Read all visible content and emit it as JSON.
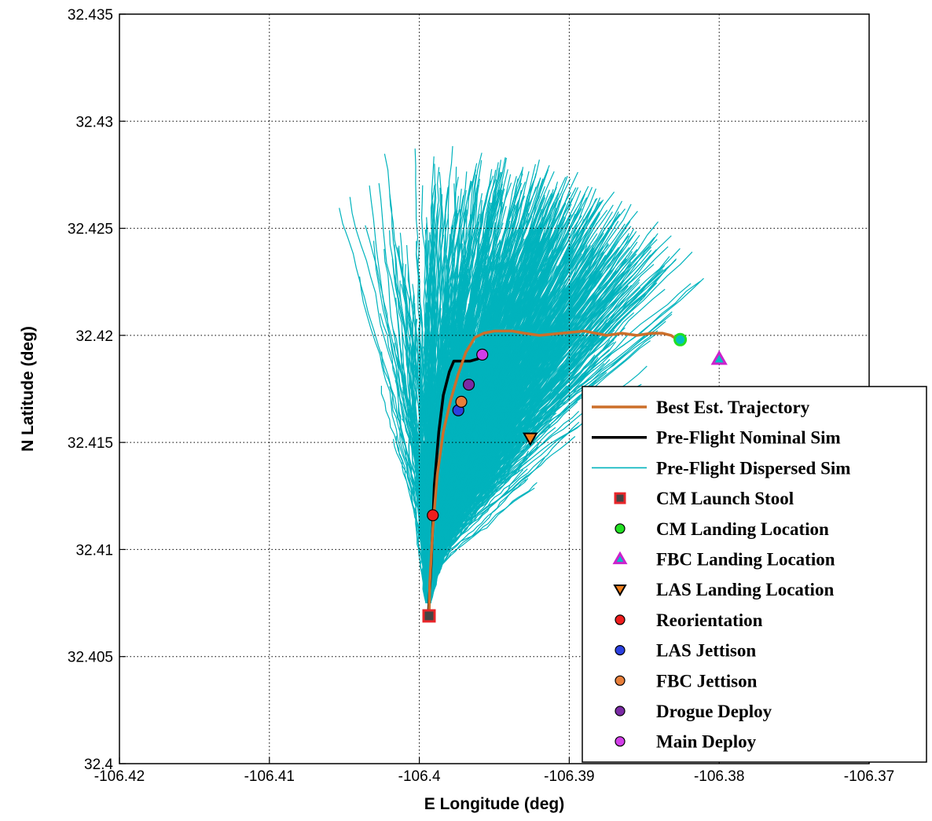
{
  "chart_data": {
    "type": "line",
    "title": "",
    "xlabel": "E Longitude (deg)",
    "ylabel": "N Latitude (deg)",
    "xlim": [
      -106.42,
      -106.37
    ],
    "ylim": [
      32.4,
      32.435
    ],
    "x_ticks": [
      -106.42,
      -106.41,
      -106.4,
      -106.39,
      -106.38,
      -106.37
    ],
    "y_ticks": [
      32.4,
      32.405,
      32.41,
      32.415,
      32.42,
      32.425,
      32.43,
      32.435
    ],
    "x_tick_labels": [
      "-106.42",
      "-106.41",
      "-106.4",
      "-106.39",
      "-106.38",
      "-106.37"
    ],
    "y_tick_labels": [
      "32.4",
      "32.405",
      "32.41",
      "32.415",
      "32.42",
      "32.425",
      "32.43",
      "32.435"
    ],
    "grid": true,
    "legend_position": "bottom-right",
    "colors": {
      "best": "#cc6f2a",
      "nominal": "#000000",
      "dispersed": "#00b3bd",
      "launch": "#e8262a",
      "cm_landing": "#22e022",
      "fbc_landing": "#cc22cc",
      "las_landing": "#f07e1a",
      "reorientation": "#ee1d1d",
      "las_jettison": "#2b40e0",
      "fbc_jettison": "#e77e3a",
      "drogue": "#7a2aa4",
      "main": "#d23ee8"
    },
    "series": [
      {
        "name": "Best Est. Trajectory",
        "style": "line",
        "x": [
          -106.39935,
          -106.3993,
          -106.3991,
          -106.3988,
          -106.3984,
          -106.3979,
          -106.3974,
          -106.3969,
          -106.3963,
          -106.3957,
          -106.395,
          -106.3944,
          -106.3938,
          -106.393,
          -106.392,
          -106.3905,
          -106.389,
          -106.3875,
          -106.3865,
          -106.3855,
          -106.3845,
          -106.3838,
          -106.3832,
          -106.3828
        ],
        "y": [
          32.4069,
          32.4085,
          32.411,
          32.4135,
          32.4155,
          32.417,
          32.4182,
          32.4192,
          32.4199,
          32.4201,
          32.4202,
          32.4202,
          32.4202,
          32.4201,
          32.42,
          32.4201,
          32.4202,
          32.42,
          32.4201,
          32.42,
          32.4201,
          32.4201,
          32.42,
          32.4198
        ]
      },
      {
        "name": "Pre-Flight Nominal Sim",
        "style": "line",
        "x": [
          -106.3994,
          -106.3992,
          -106.399,
          -106.3987,
          -106.3984,
          -106.398,
          -106.3977,
          -106.3972,
          -106.3966,
          -106.3961,
          -106.3955
        ],
        "y": [
          32.4069,
          32.4095,
          32.413,
          32.4155,
          32.4172,
          32.4183,
          32.4188,
          32.4188,
          32.4188,
          32.4189,
          32.4191
        ]
      },
      {
        "name": "Pre-Flight Dispersed Sim",
        "style": "fan",
        "origin": [
          -106.3994,
          32.4075
        ],
        "fan_angles_deg": [
          60,
          80
        ],
        "notes": ""
      },
      {
        "name": "CM Launch Stool",
        "style": "marker",
        "marker": "square",
        "points": [
          [
            -106.39935,
            32.4069
          ]
        ]
      },
      {
        "name": "CM Landing Location",
        "style": "marker",
        "marker": "circle",
        "points": [
          [
            -106.3826,
            32.4198
          ]
        ]
      },
      {
        "name": "FBC Landing Location",
        "style": "marker",
        "marker": "triangle-up",
        "points": [
          [
            -106.38,
            32.4189
          ]
        ]
      },
      {
        "name": "LAS Landing Location",
        "style": "marker",
        "marker": "triangle-down",
        "points": [
          [
            -106.3926,
            32.4152
          ]
        ]
      },
      {
        "name": "Reorientation",
        "style": "marker",
        "marker": "circle",
        "points": [
          [
            -106.3991,
            32.4116
          ]
        ]
      },
      {
        "name": "LAS Jettison",
        "style": "marker",
        "marker": "circle",
        "points": [
          [
            -106.3974,
            32.4165
          ]
        ]
      },
      {
        "name": "FBC Jettison",
        "style": "marker",
        "marker": "circle",
        "points": [
          [
            -106.3972,
            32.4169
          ]
        ]
      },
      {
        "name": "Drogue Deploy",
        "style": "marker",
        "marker": "circle",
        "points": [
          [
            -106.3967,
            32.4177
          ]
        ]
      },
      {
        "name": "Main Deploy",
        "style": "marker",
        "marker": "circle",
        "points": [
          [
            -106.3958,
            32.4191
          ]
        ]
      }
    ],
    "legend": [
      "Best Est. Trajectory",
      "Pre-Flight Nominal Sim",
      "Pre-Flight Dispersed Sim",
      "CM Launch Stool",
      "CM Landing Location",
      "FBC Landing Location",
      "LAS Landing Location",
      "Reorientation",
      "LAS Jettison",
      "FBC Jettison",
      "Drogue Deploy",
      "Main Deploy"
    ]
  }
}
